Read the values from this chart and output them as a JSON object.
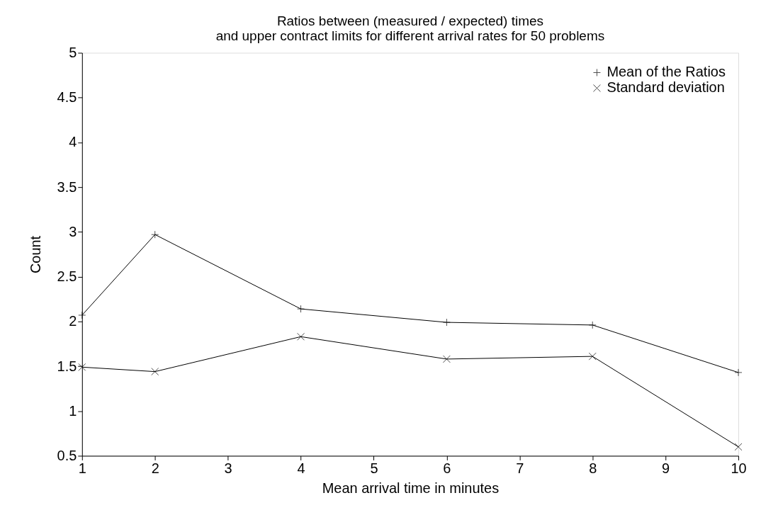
{
  "chart_data": {
    "type": "line",
    "title": [
      "Ratios between (measured / expected) times",
      "and upper contract limits for different arrival rates for 50 problems"
    ],
    "xlabel": "Mean arrival time in minutes",
    "ylabel": "Count",
    "x": [
      1,
      2,
      4,
      6,
      8,
      10
    ],
    "series": [
      {
        "name": "Mean of the Ratios",
        "color": "#000000",
        "marker": "cross",
        "values": [
          2.07,
          2.97,
          2.14,
          1.99,
          1.96,
          1.43
        ]
      },
      {
        "name": "Standard deviation",
        "color": "#000000",
        "marker": "x",
        "values": [
          1.49,
          1.44,
          1.83,
          1.58,
          1.61,
          0.6
        ]
      }
    ],
    "xlim": [
      1,
      10
    ],
    "xticks": [
      1,
      2,
      3,
      4,
      5,
      6,
      7,
      8,
      9,
      10
    ],
    "ylim": [
      0.5,
      5
    ],
    "yticks": [
      0.5,
      1,
      1.5,
      2,
      2.5,
      3,
      3.5,
      4,
      4.5,
      5
    ],
    "grid": false,
    "legend": "top right",
    "line_style": "solid"
  }
}
